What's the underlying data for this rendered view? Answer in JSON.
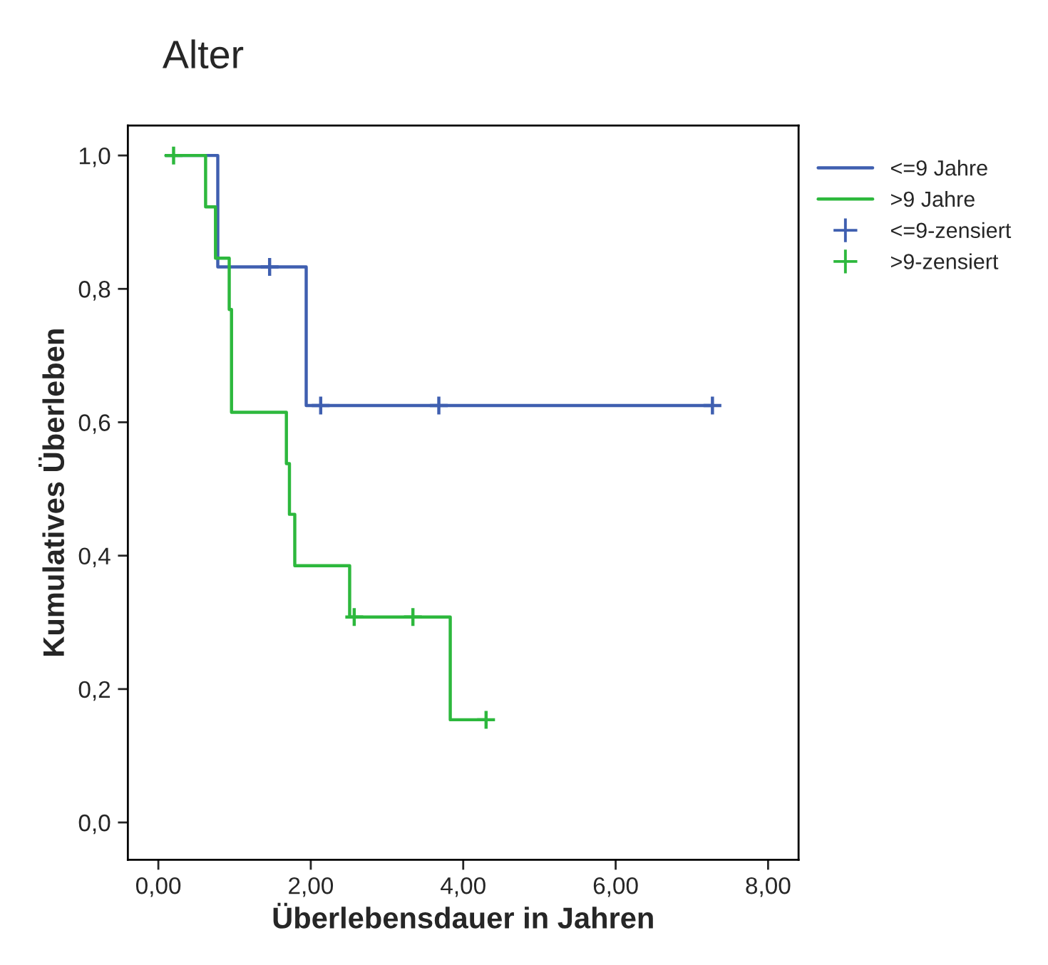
{
  "chart_data": {
    "type": "step",
    "title": "Alter",
    "xlabel": "Überlebensdauer in Jahren",
    "ylabel": "Kumulatives Überleben",
    "xlim": [
      -0.4,
      8.4
    ],
    "ylim": [
      -0.056,
      1.045
    ],
    "xticks": [
      {
        "value": 0,
        "label": "0,00"
      },
      {
        "value": 2,
        "label": "2,00"
      },
      {
        "value": 4,
        "label": "4,00"
      },
      {
        "value": 6,
        "label": "6,00"
      },
      {
        "value": 8,
        "label": "8,00"
      }
    ],
    "yticks": [
      {
        "value": 0,
        "label": "0,0"
      },
      {
        "value": 0.2,
        "label": "0,2"
      },
      {
        "value": 0.4,
        "label": "0,4"
      },
      {
        "value": 0.6,
        "label": "0,6"
      },
      {
        "value": 0.8,
        "label": "0,8"
      },
      {
        "value": 1,
        "label": "1,0"
      }
    ],
    "legend": "right",
    "grid": false,
    "series": [
      {
        "name": "<=9 Jahre",
        "color": "#3f5fb0",
        "x": [
          0.1,
          0.78,
          1.94,
          7.27
        ],
        "values": [
          1,
          0.833,
          0.625,
          0.625
        ]
      },
      {
        "name": ">9 Jahre",
        "color": "#2db83d",
        "x": [
          0.1,
          0.62,
          0.75,
          0.93,
          0.96,
          1.68,
          1.72,
          1.79,
          2.51,
          3.83,
          4.3
        ],
        "values": [
          1,
          0.923,
          0.846,
          0.769,
          0.615,
          0.538,
          0.462,
          0.385,
          0.308,
          0.154,
          0.154
        ]
      },
      {
        "name": "<=9-zensiert",
        "type": "scatter",
        "marker": "cross",
        "color": "#3f5fb0",
        "x": [
          1.46,
          2.13,
          3.68,
          7.27
        ],
        "values": [
          0.833,
          0.625,
          0.625,
          0.625
        ]
      },
      {
        "name": ">9-zensiert",
        "type": "scatter",
        "marker": "cross",
        "color": "#2db83d",
        "x": [
          0.2,
          2.57,
          3.34,
          4.3
        ],
        "values": [
          1,
          0.308,
          0.308,
          0.154
        ]
      }
    ]
  }
}
